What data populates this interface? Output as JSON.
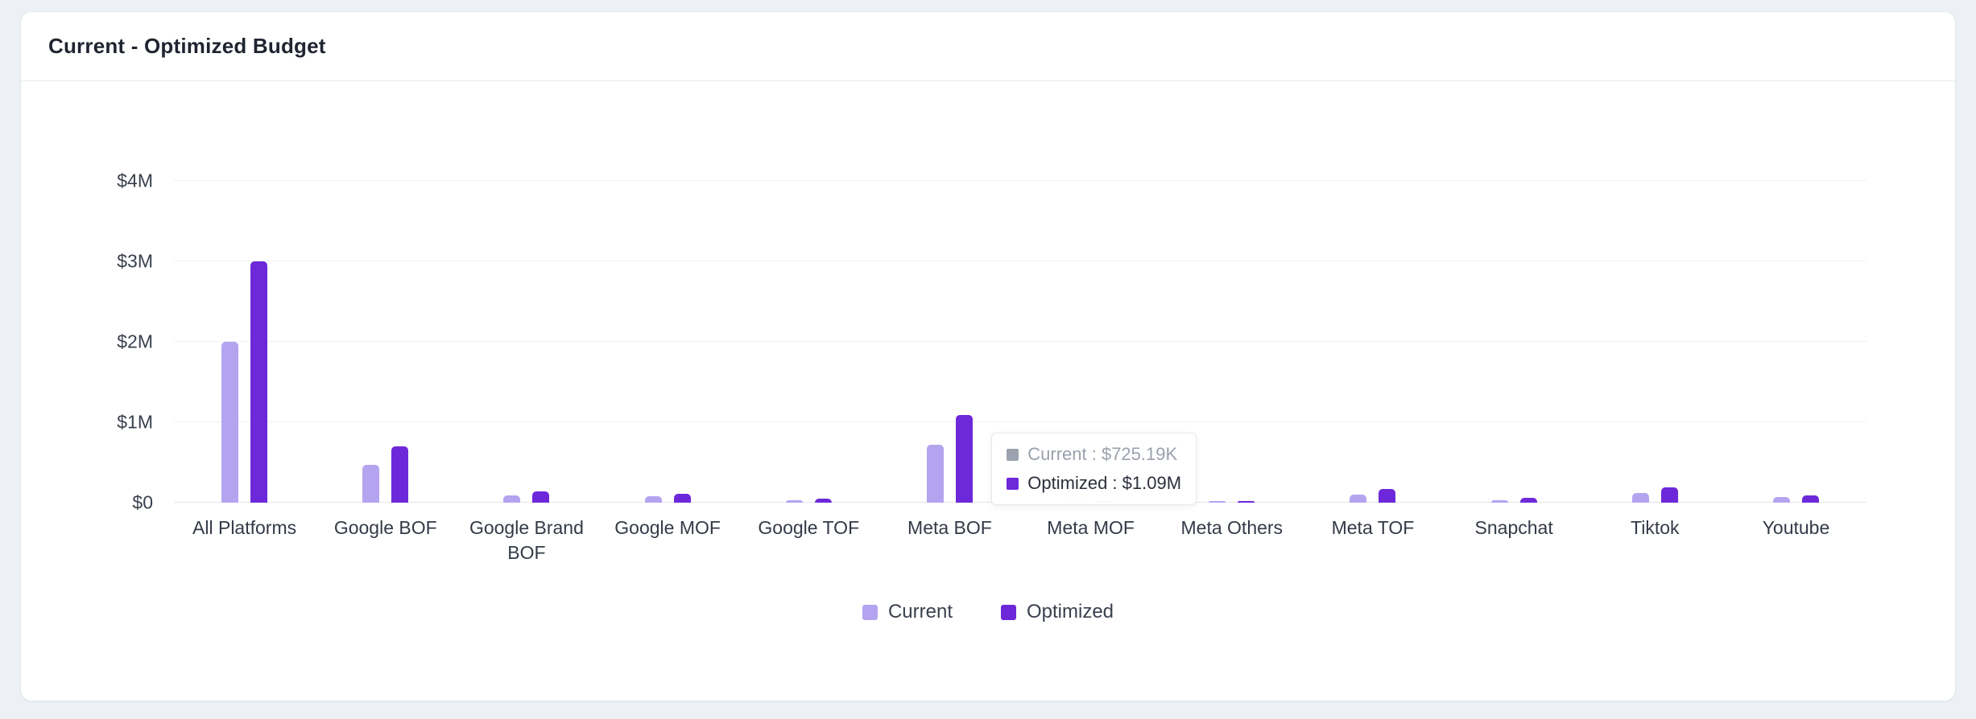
{
  "card": {
    "title": "Current - Optimized Budget"
  },
  "chart_data": {
    "type": "bar",
    "title": "Current - Optimized Budget",
    "unit": "USD millions",
    "categories": [
      "All Platforms",
      "Google BOF",
      "Google Brand BOF",
      "Google MOF",
      "Google TOF",
      "Meta BOF",
      "Meta MOF",
      "Meta Others",
      "Meta TOF",
      "Snapchat",
      "Tiktok",
      "Youtube"
    ],
    "series": [
      {
        "name": "Current",
        "color": "#b4a4f0",
        "values": [
          2.0,
          0.47,
          0.09,
          0.08,
          0.035,
          0.725,
          0.01,
          0.015,
          0.1,
          0.035,
          0.12,
          0.07
        ]
      },
      {
        "name": "Optimized",
        "color": "#6d28d9",
        "values": [
          3.0,
          0.7,
          0.14,
          0.11,
          0.055,
          1.09,
          0.02,
          0.025,
          0.17,
          0.06,
          0.19,
          0.09
        ]
      }
    ],
    "ylim": [
      0,
      4
    ],
    "yticks": [
      {
        "value": 0,
        "label": "$0"
      },
      {
        "value": 1,
        "label": "$1M"
      },
      {
        "value": 2,
        "label": "$2M"
      },
      {
        "value": 3,
        "label": "$3M"
      },
      {
        "value": 4,
        "label": "$4M"
      }
    ],
    "grid": true,
    "legend_position": "bottom",
    "tooltip": {
      "anchor_category": "Meta BOF",
      "separator": " : ",
      "rows": [
        {
          "series": "Current",
          "value": "$725.19K",
          "swatch_color": "#9ca3af",
          "muted": true
        },
        {
          "series": "Optimized",
          "value": "$1.09M",
          "swatch_color": "#6d28d9",
          "muted": false
        }
      ]
    }
  }
}
